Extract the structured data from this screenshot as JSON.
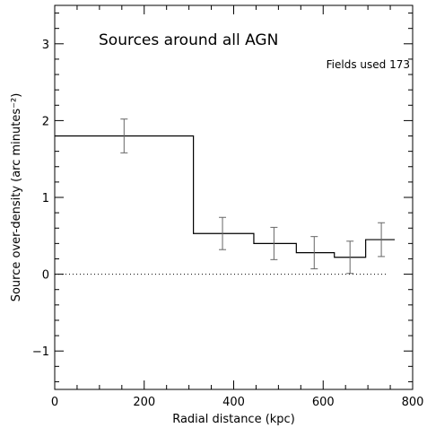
{
  "chart_data": {
    "type": "line",
    "step": true,
    "xlabel": "Radial distance (kpc)",
    "ylabel": "Source over-density (arc minutes⁻²)",
    "xlim": [
      0,
      800
    ],
    "ylim": [
      -1.5,
      3.5
    ],
    "xticks": [
      0,
      200,
      400,
      600,
      800
    ],
    "xtick_labels": [
      "0",
      "200",
      "400",
      "600",
      "800"
    ],
    "yticks": [
      -1,
      0,
      1,
      2,
      3
    ],
    "ytick_labels": [
      "−1",
      "0",
      "1",
      "2",
      "3"
    ],
    "grid": false,
    "annotations": [
      {
        "id": "title",
        "text": "Sources around all AGN"
      },
      {
        "id": "fields",
        "text": "Fields used 173"
      }
    ],
    "bin_edges": [
      0,
      310,
      445,
      540,
      625,
      695,
      760
    ],
    "series": [
      {
        "x": [
          155,
          375,
          490,
          580,
          660,
          730
        ],
        "y": [
          1.8,
          0.53,
          0.4,
          0.28,
          0.22,
          0.45
        ],
        "yerr": [
          0.22,
          0.21,
          0.21,
          0.21,
          0.21,
          0.22
        ]
      }
    ],
    "reference_line": {
      "y": 0,
      "style": "dotted"
    }
  }
}
